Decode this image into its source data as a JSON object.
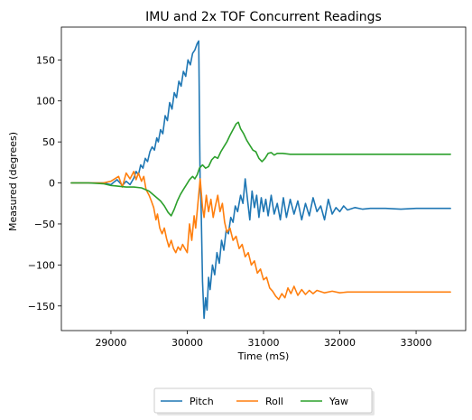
{
  "chart_data": {
    "type": "line",
    "title": "IMU and 2x TOF Concurrent Readings",
    "xlabel": "Time (mS)",
    "ylabel": "Measured (degrees)",
    "xlim": [
      28350,
      33650
    ],
    "ylim": [
      -180,
      190
    ],
    "xticks": [
      29000,
      30000,
      31000,
      32000,
      33000
    ],
    "yticks": [
      -150,
      -100,
      -50,
      0,
      50,
      100,
      150
    ],
    "xtick_labels": [
      "29000",
      "30000",
      "31000",
      "32000",
      "33000"
    ],
    "ytick_labels": [
      "−150",
      "−100",
      "−50",
      "0",
      "50",
      "100",
      "150"
    ],
    "grid": false,
    "legend_position": "bottom-center outside",
    "series": [
      {
        "name": "Pitch",
        "color": "#1f77b4",
        "points": [
          [
            28480,
            0
          ],
          [
            28700,
            0
          ],
          [
            28900,
            0
          ],
          [
            29000,
            -2
          ],
          [
            29080,
            4
          ],
          [
            29150,
            -3
          ],
          [
            29200,
            2
          ],
          [
            29250,
            -2
          ],
          [
            29300,
            6
          ],
          [
            29330,
            14
          ],
          [
            29360,
            10
          ],
          [
            29390,
            22
          ],
          [
            29420,
            18
          ],
          [
            29450,
            30
          ],
          [
            29480,
            26
          ],
          [
            29510,
            38
          ],
          [
            29540,
            44
          ],
          [
            29570,
            40
          ],
          [
            29600,
            55
          ],
          [
            29620,
            50
          ],
          [
            29650,
            65
          ],
          [
            29680,
            60
          ],
          [
            29710,
            82
          ],
          [
            29740,
            76
          ],
          [
            29770,
            98
          ],
          [
            29800,
            90
          ],
          [
            29830,
            110
          ],
          [
            29860,
            104
          ],
          [
            29890,
            124
          ],
          [
            29920,
            118
          ],
          [
            29950,
            136
          ],
          [
            29980,
            130
          ],
          [
            30010,
            150
          ],
          [
            30040,
            144
          ],
          [
            30070,
            158
          ],
          [
            30100,
            162
          ],
          [
            30130,
            170
          ],
          [
            30150,
            173
          ],
          [
            30170,
            -5
          ],
          [
            30180,
            -20
          ],
          [
            30200,
            -120
          ],
          [
            30220,
            -165
          ],
          [
            30240,
            -140
          ],
          [
            30260,
            -155
          ],
          [
            30280,
            -115
          ],
          [
            30300,
            -130
          ],
          [
            30330,
            -100
          ],
          [
            30360,
            -112
          ],
          [
            30390,
            -85
          ],
          [
            30420,
            -98
          ],
          [
            30450,
            -70
          ],
          [
            30480,
            -82
          ],
          [
            30510,
            -58
          ],
          [
            30540,
            -62
          ],
          [
            30570,
            -42
          ],
          [
            30600,
            -48
          ],
          [
            30630,
            -28
          ],
          [
            30660,
            -35
          ],
          [
            30700,
            -15
          ],
          [
            30730,
            -25
          ],
          [
            30760,
            5
          ],
          [
            30790,
            -20
          ],
          [
            30820,
            -45
          ],
          [
            30850,
            -10
          ],
          [
            30880,
            -30
          ],
          [
            30910,
            -15
          ],
          [
            30940,
            -42
          ],
          [
            30970,
            -18
          ],
          [
            31000,
            -35
          ],
          [
            31030,
            -20
          ],
          [
            31060,
            -40
          ],
          [
            31100,
            -15
          ],
          [
            31140,
            -38
          ],
          [
            31180,
            -25
          ],
          [
            31220,
            -45
          ],
          [
            31260,
            -18
          ],
          [
            31300,
            -42
          ],
          [
            31350,
            -20
          ],
          [
            31400,
            -38
          ],
          [
            31450,
            -22
          ],
          [
            31500,
            -45
          ],
          [
            31550,
            -25
          ],
          [
            31600,
            -40
          ],
          [
            31650,
            -18
          ],
          [
            31700,
            -35
          ],
          [
            31750,
            -28
          ],
          [
            31800,
            -45
          ],
          [
            31850,
            -20
          ],
          [
            31900,
            -38
          ],
          [
            31950,
            -30
          ],
          [
            32000,
            -35
          ],
          [
            32050,
            -28
          ],
          [
            32100,
            -33
          ],
          [
            32200,
            -30
          ],
          [
            32300,
            -32
          ],
          [
            32400,
            -31
          ],
          [
            32600,
            -31
          ],
          [
            32800,
            -32
          ],
          [
            33000,
            -31
          ],
          [
            33200,
            -31
          ],
          [
            33450,
            -31
          ]
        ]
      },
      {
        "name": "Roll",
        "color": "#ff7f0e",
        "points": [
          [
            28480,
            0
          ],
          [
            28700,
            0
          ],
          [
            28900,
            0
          ],
          [
            29000,
            2
          ],
          [
            29100,
            8
          ],
          [
            29150,
            -5
          ],
          [
            29200,
            12
          ],
          [
            29250,
            5
          ],
          [
            29300,
            14
          ],
          [
            29330,
            4
          ],
          [
            29360,
            12
          ],
          [
            29400,
            2
          ],
          [
            29430,
            8
          ],
          [
            29460,
            -8
          ],
          [
            29500,
            -15
          ],
          [
            29530,
            -22
          ],
          [
            29560,
            -30
          ],
          [
            29590,
            -45
          ],
          [
            29610,
            -38
          ],
          [
            29640,
            -55
          ],
          [
            29670,
            -62
          ],
          [
            29700,
            -55
          ],
          [
            29730,
            -68
          ],
          [
            29760,
            -78
          ],
          [
            29790,
            -70
          ],
          [
            29820,
            -80
          ],
          [
            29850,
            -85
          ],
          [
            29880,
            -78
          ],
          [
            29910,
            -82
          ],
          [
            29940,
            -75
          ],
          [
            29970,
            -80
          ],
          [
            30000,
            -85
          ],
          [
            30030,
            -50
          ],
          [
            30060,
            -70
          ],
          [
            30090,
            -40
          ],
          [
            30110,
            -55
          ],
          [
            30140,
            -25
          ],
          [
            30170,
            5
          ],
          [
            30200,
            -30
          ],
          [
            30220,
            -42
          ],
          [
            30250,
            -15
          ],
          [
            30280,
            -35
          ],
          [
            30310,
            -20
          ],
          [
            30340,
            -42
          ],
          [
            30370,
            -28
          ],
          [
            30400,
            -15
          ],
          [
            30430,
            -35
          ],
          [
            30460,
            -25
          ],
          [
            30490,
            -48
          ],
          [
            30520,
            -60
          ],
          [
            30560,
            -55
          ],
          [
            30600,
            -70
          ],
          [
            30640,
            -65
          ],
          [
            30680,
            -80
          ],
          [
            30720,
            -75
          ],
          [
            30760,
            -90
          ],
          [
            30800,
            -85
          ],
          [
            30840,
            -100
          ],
          [
            30880,
            -95
          ],
          [
            30920,
            -110
          ],
          [
            30960,
            -105
          ],
          [
            31000,
            -118
          ],
          [
            31040,
            -115
          ],
          [
            31080,
            -128
          ],
          [
            31120,
            -132
          ],
          [
            31160,
            -138
          ],
          [
            31200,
            -142
          ],
          [
            31240,
            -135
          ],
          [
            31280,
            -140
          ],
          [
            31320,
            -128
          ],
          [
            31360,
            -135
          ],
          [
            31400,
            -126
          ],
          [
            31450,
            -137
          ],
          [
            31500,
            -130
          ],
          [
            31550,
            -136
          ],
          [
            31600,
            -131
          ],
          [
            31650,
            -135
          ],
          [
            31700,
            -131
          ],
          [
            31800,
            -134
          ],
          [
            31900,
            -132
          ],
          [
            32000,
            -134
          ],
          [
            32100,
            -133
          ],
          [
            32300,
            -133
          ],
          [
            32600,
            -133
          ],
          [
            32900,
            -133
          ],
          [
            33200,
            -133
          ],
          [
            33450,
            -133
          ]
        ]
      },
      {
        "name": "Yaw",
        "color": "#2ca02c",
        "points": [
          [
            28480,
            0
          ],
          [
            28700,
            0
          ],
          [
            28900,
            -1
          ],
          [
            29000,
            -3
          ],
          [
            29100,
            -4
          ],
          [
            29200,
            -5
          ],
          [
            29300,
            -5
          ],
          [
            29400,
            -6
          ],
          [
            29500,
            -10
          ],
          [
            29600,
            -18
          ],
          [
            29650,
            -22
          ],
          [
            29700,
            -28
          ],
          [
            29750,
            -36
          ],
          [
            29790,
            -40
          ],
          [
            29830,
            -32
          ],
          [
            29870,
            -22
          ],
          [
            29910,
            -14
          ],
          [
            29950,
            -8
          ],
          [
            29990,
            -2
          ],
          [
            30030,
            4
          ],
          [
            30070,
            8
          ],
          [
            30100,
            5
          ],
          [
            30130,
            10
          ],
          [
            30160,
            18
          ],
          [
            30200,
            22
          ],
          [
            30240,
            18
          ],
          [
            30280,
            20
          ],
          [
            30320,
            28
          ],
          [
            30360,
            32
          ],
          [
            30400,
            30
          ],
          [
            30440,
            38
          ],
          [
            30480,
            44
          ],
          [
            30520,
            50
          ],
          [
            30560,
            58
          ],
          [
            30600,
            65
          ],
          [
            30640,
            72
          ],
          [
            30670,
            74
          ],
          [
            30700,
            66
          ],
          [
            30740,
            60
          ],
          [
            30780,
            52
          ],
          [
            30820,
            46
          ],
          [
            30860,
            40
          ],
          [
            30900,
            38
          ],
          [
            30940,
            30
          ],
          [
            30980,
            26
          ],
          [
            31020,
            30
          ],
          [
            31060,
            36
          ],
          [
            31100,
            37
          ],
          [
            31140,
            34
          ],
          [
            31180,
            36
          ],
          [
            31250,
            36
          ],
          [
            31350,
            35
          ],
          [
            31500,
            35
          ],
          [
            31700,
            35
          ],
          [
            32000,
            35
          ],
          [
            32300,
            35
          ],
          [
            32600,
            35
          ],
          [
            32900,
            35
          ],
          [
            33200,
            35
          ],
          [
            33450,
            35
          ]
        ]
      }
    ]
  }
}
